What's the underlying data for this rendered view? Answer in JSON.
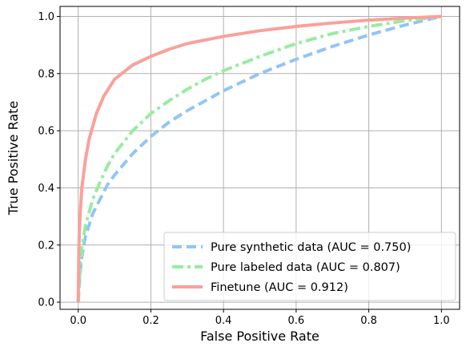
{
  "chart_data": {
    "type": "line",
    "title": "",
    "xlabel": "False Positive Rate",
    "ylabel": "True Positive Rate",
    "xlim": [
      -0.05,
      1.05
    ],
    "ylim": [
      -0.025,
      1.035
    ],
    "xticks": [
      0.0,
      0.2,
      0.4,
      0.6,
      0.8,
      1.0
    ],
    "yticks": [
      0.0,
      0.2,
      0.4,
      0.6,
      0.8,
      1.0
    ],
    "grid": true,
    "legend_position": "lower-right",
    "series": [
      {
        "name": "Pure synthetic data (AUC = 0.750)",
        "color": "#92c5f7",
        "style": "dashed",
        "points": [
          [
            0.0,
            0.0
          ],
          [
            0.005,
            0.1
          ],
          [
            0.01,
            0.16
          ],
          [
            0.02,
            0.23
          ],
          [
            0.04,
            0.31
          ],
          [
            0.06,
            0.36
          ],
          [
            0.08,
            0.41
          ],
          [
            0.1,
            0.445
          ],
          [
            0.15,
            0.52
          ],
          [
            0.2,
            0.58
          ],
          [
            0.25,
            0.63
          ],
          [
            0.3,
            0.67
          ],
          [
            0.35,
            0.705
          ],
          [
            0.4,
            0.74
          ],
          [
            0.5,
            0.8
          ],
          [
            0.6,
            0.85
          ],
          [
            0.7,
            0.895
          ],
          [
            0.8,
            0.935
          ],
          [
            0.9,
            0.97
          ],
          [
            1.0,
            1.0
          ]
        ]
      },
      {
        "name": "Pure labeled data (AUC = 0.807)",
        "color": "#98eca0",
        "style": "dashdot",
        "points": [
          [
            0.0,
            0.0
          ],
          [
            0.005,
            0.12
          ],
          [
            0.01,
            0.19
          ],
          [
            0.02,
            0.27
          ],
          [
            0.04,
            0.36
          ],
          [
            0.06,
            0.42
          ],
          [
            0.08,
            0.475
          ],
          [
            0.1,
            0.52
          ],
          [
            0.15,
            0.6
          ],
          [
            0.2,
            0.66
          ],
          [
            0.25,
            0.705
          ],
          [
            0.3,
            0.745
          ],
          [
            0.35,
            0.78
          ],
          [
            0.4,
            0.81
          ],
          [
            0.5,
            0.86
          ],
          [
            0.6,
            0.905
          ],
          [
            0.7,
            0.94
          ],
          [
            0.8,
            0.965
          ],
          [
            0.9,
            0.985
          ],
          [
            1.0,
            1.0
          ]
        ]
      },
      {
        "name": "Finetune (AUC = 0.912)",
        "color": "#f9a19a",
        "style": "solid",
        "points": [
          [
            0.0,
            0.0
          ],
          [
            0.002,
            0.2
          ],
          [
            0.005,
            0.3
          ],
          [
            0.01,
            0.4
          ],
          [
            0.02,
            0.5
          ],
          [
            0.03,
            0.57
          ],
          [
            0.05,
            0.66
          ],
          [
            0.07,
            0.72
          ],
          [
            0.1,
            0.78
          ],
          [
            0.15,
            0.83
          ],
          [
            0.2,
            0.86
          ],
          [
            0.25,
            0.885
          ],
          [
            0.3,
            0.905
          ],
          [
            0.4,
            0.93
          ],
          [
            0.5,
            0.95
          ],
          [
            0.6,
            0.965
          ],
          [
            0.7,
            0.977
          ],
          [
            0.8,
            0.987
          ],
          [
            0.9,
            0.994
          ],
          [
            1.0,
            1.0
          ]
        ]
      }
    ]
  }
}
